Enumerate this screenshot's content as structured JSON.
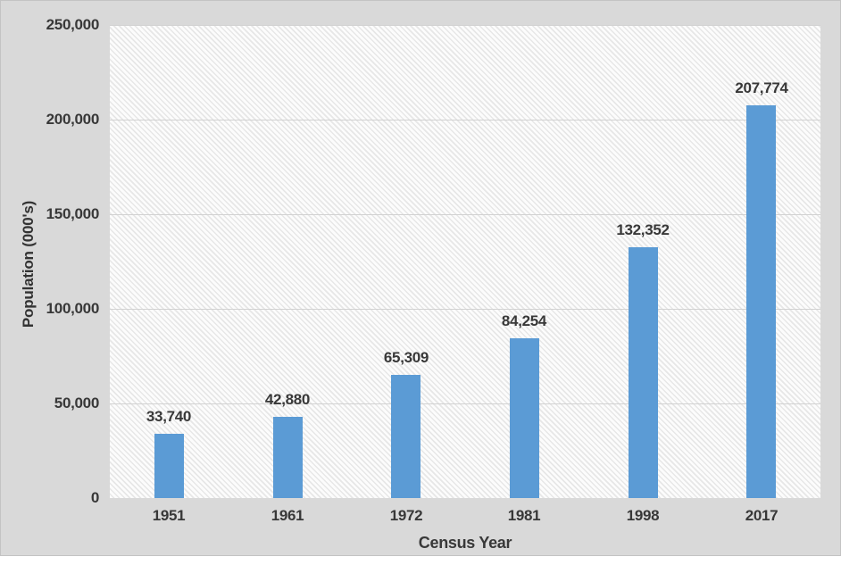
{
  "chart_data": {
    "type": "bar",
    "title": "",
    "categories": [
      "1951",
      "1961",
      "1972",
      "1981",
      "1998",
      "2017"
    ],
    "values": [
      33740,
      42880,
      65309,
      84254,
      132352,
      207774
    ],
    "data_labels": [
      "33,740",
      "42,880",
      "65,309",
      "84,254",
      "132,352",
      "207,774"
    ],
    "xlabel": "Census Year",
    "ylabel": "Population (000's)",
    "ylim": [
      0,
      250000
    ],
    "yticks": [
      0,
      50000,
      100000,
      150000,
      200000,
      250000
    ],
    "ytick_labels": [
      "0",
      "50,000",
      "100,000",
      "150,000",
      "200,000",
      "250,000"
    ],
    "grid": "horizontal",
    "legend_position": "none",
    "plot_background": "diagonal-hatch"
  },
  "colors": {
    "bar": "#5B9BD5",
    "chart_background": "#D9D9D9",
    "hatch_line": "#E7E7E7",
    "gridline": "#D2D2D2",
    "text": "#3F3F3F"
  }
}
